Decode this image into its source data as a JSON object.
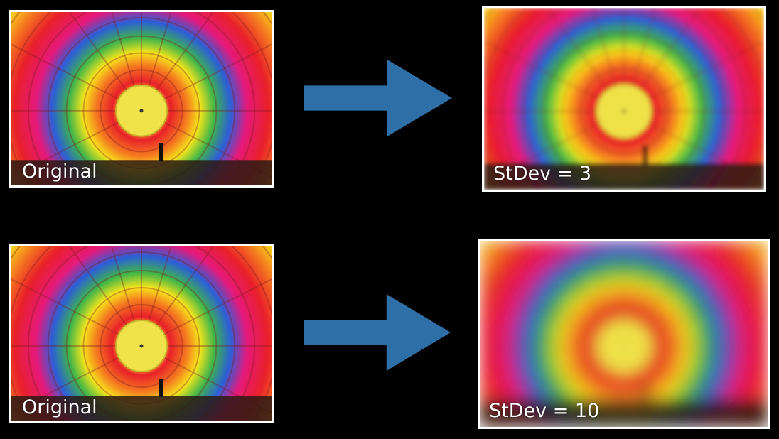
{
  "panels": [
    {
      "caption": "Original"
    },
    {
      "caption": "StDev = 3"
    },
    {
      "caption": "Original"
    },
    {
      "caption": "StDev = 10"
    }
  ],
  "icons": [
    "right-arrow-icon",
    "right-arrow-icon"
  ],
  "colors": {
    "background": "#000000",
    "arrow": "#2f6fa8",
    "frame": "#ffffff",
    "balloon_red": "#e8202a",
    "balloon_orange": "#f47a20",
    "balloon_yellow": "#f6e51c",
    "balloon_green": "#3fb549",
    "balloon_blue": "#2c5fd6",
    "balloon_pink": "#e5197b",
    "balloon_center": "#efe24a"
  }
}
